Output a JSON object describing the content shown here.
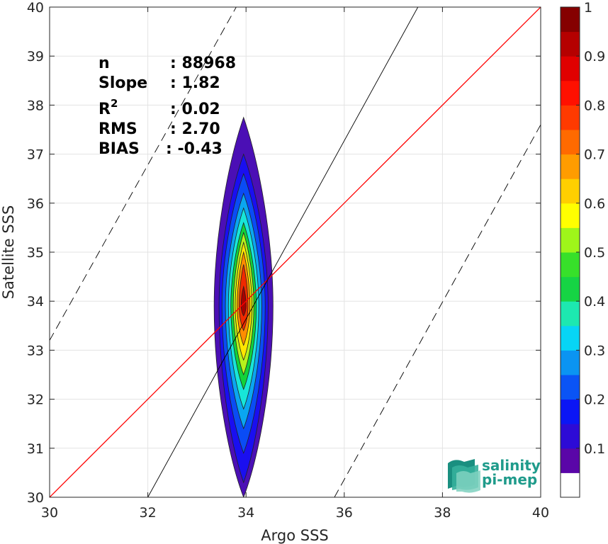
{
  "chart_data": {
    "type": "scatter",
    "subtype": "density-contour",
    "xlabel": "Argo SSS",
    "ylabel": "Satellite SSS",
    "xlim": [
      30,
      40
    ],
    "ylim": [
      30,
      40
    ],
    "xticks": [
      30,
      32,
      34,
      36,
      38,
      40
    ],
    "yticks": [
      30,
      31,
      32,
      33,
      34,
      35,
      36,
      37,
      38,
      39,
      40
    ],
    "grid": true,
    "stats": [
      {
        "label": "n",
        "value": ": 88968"
      },
      {
        "label": "Slope",
        "value": ": 1.82"
      },
      {
        "label": "R",
        "sup": "2",
        "value": ": 0.02"
      },
      {
        "label": "RMS",
        "value": ": 2.70"
      },
      {
        "label": "BIAS",
        "value": ": -0.43"
      }
    ],
    "lines": [
      {
        "type": "identity",
        "color": "#ff0000",
        "points": [
          [
            30,
            30
          ],
          [
            40,
            40
          ]
        ]
      },
      {
        "type": "regression",
        "color": "#000000",
        "points": [
          [
            32,
            30
          ],
          [
            37.5,
            40
          ]
        ]
      },
      {
        "type": "bound-dashed",
        "color": "#000000",
        "points": [
          [
            30,
            33.2
          ],
          [
            33.8,
            40
          ]
        ]
      },
      {
        "type": "bound-dashed",
        "color": "#000000",
        "points": [
          [
            35.8,
            30
          ],
          [
            40,
            37.6
          ]
        ]
      }
    ],
    "density_center": [
      33.95,
      33.9
    ],
    "density_levels": [
      {
        "level": 0.05,
        "color": "#4b0fb5",
        "half_width_x": 0.6,
        "y_bottom": 30.0,
        "y_top": 37.75
      },
      {
        "level": 0.15,
        "color": "#1a0ff0",
        "half_width_x": 0.5,
        "y_bottom": 30.3,
        "y_top": 37.0
      },
      {
        "level": 0.2,
        "color": "#0a4cf5",
        "half_width_x": 0.44,
        "y_bottom": 30.9,
        "y_top": 36.6
      },
      {
        "level": 0.3,
        "color": "#0aa6f0",
        "half_width_x": 0.37,
        "y_bottom": 31.4,
        "y_top": 36.2
      },
      {
        "level": 0.4,
        "color": "#17e6d8",
        "half_width_x": 0.31,
        "y_bottom": 31.8,
        "y_top": 35.9
      },
      {
        "level": 0.5,
        "color": "#12d23a",
        "half_width_x": 0.26,
        "y_bottom": 32.2,
        "y_top": 35.6
      },
      {
        "level": 0.6,
        "color": "#b6f21b",
        "half_width_x": 0.21,
        "y_bottom": 32.5,
        "y_top": 35.4
      },
      {
        "level": 0.7,
        "color": "#ffe600",
        "half_width_x": 0.17,
        "y_bottom": 32.8,
        "y_top": 35.2
      },
      {
        "level": 0.8,
        "color": "#ff8c00",
        "half_width_x": 0.13,
        "y_bottom": 33.1,
        "y_top": 35.0
      },
      {
        "level": 0.9,
        "color": "#f02a00",
        "half_width_x": 0.09,
        "y_bottom": 33.4,
        "y_top": 34.75
      },
      {
        "level": 1.0,
        "color": "#a80000",
        "half_width_x": 0.05,
        "y_bottom": 33.7,
        "y_top": 34.3
      }
    ],
    "colorbar": {
      "ticks": [
        "1",
        "0.9",
        "0.8",
        "0.7",
        "0.6",
        "0.5",
        "0.4",
        "0.3",
        "0.2",
        "0.1"
      ],
      "colors": [
        "#ffffff",
        "#5a06a8",
        "#2d0bd6",
        "#0b16f5",
        "#0a54f5",
        "#0b94f2",
        "#07d5f5",
        "#1de8b0",
        "#16d444",
        "#37e02a",
        "#9ff51a",
        "#ffff00",
        "#ffcf00",
        "#ff9c00",
        "#ff6a00",
        "#ff3a00",
        "#ff1000",
        "#e00000",
        "#b50000",
        "#850000"
      ]
    }
  },
  "logo": {
    "line1": "salinity",
    "line2": "pi-mep"
  }
}
